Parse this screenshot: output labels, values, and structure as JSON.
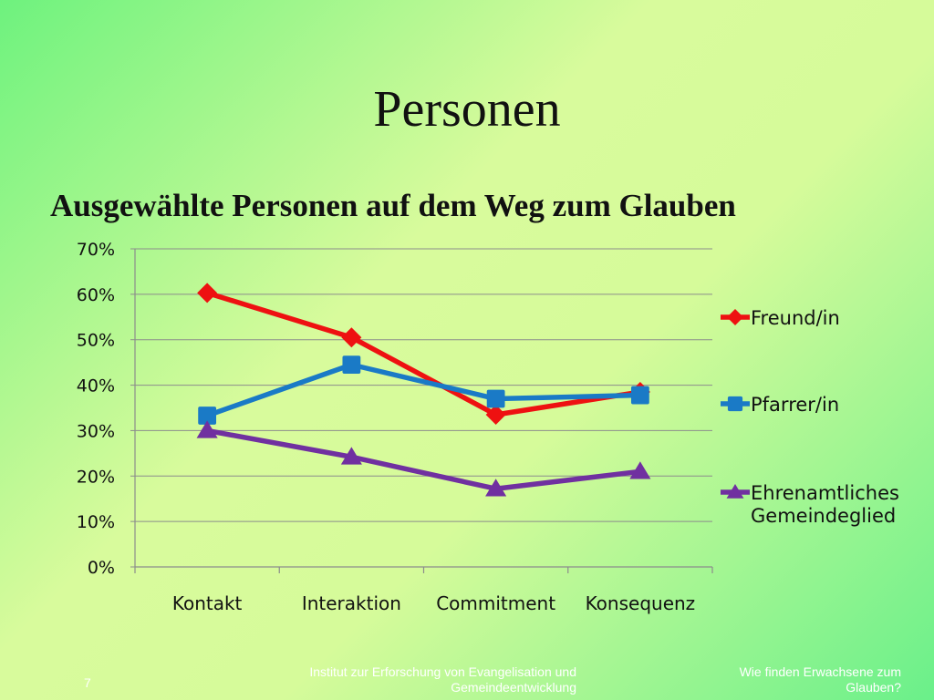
{
  "slide": {
    "title": "Personen",
    "subtitle": "Ausgewählte Personen auf dem Weg zum Glauben"
  },
  "footer": {
    "page_number": "7",
    "organization": "Institut zur Erforschung von Evangelisation und Gemeindeentwicklung",
    "topic": "Wie finden Erwachsene zum Glauben?"
  },
  "chart_data": {
    "type": "line",
    "categories": [
      "Kontakt",
      "Interaktion",
      "Commitment",
      "Konsequenz"
    ],
    "y_ticks": [
      "0%",
      "10%",
      "20%",
      "30%",
      "40%",
      "50%",
      "60%",
      "70%"
    ],
    "ylim": [
      0,
      70
    ],
    "grid": true,
    "legend_position": "right",
    "series": [
      {
        "name": "Freund/in",
        "values": [
          60.3,
          50.5,
          33.5,
          38.5
        ],
        "color": "#ee1111",
        "marker": "diamond"
      },
      {
        "name": "Pfarrer/in",
        "values": [
          33.3,
          44.5,
          37.0,
          37.8
        ],
        "color": "#1a7ac6",
        "marker": "square"
      },
      {
        "name": "Ehrenamtliches Gemeindeglied",
        "legend_lines": [
          "Ehrenamtliches",
          "Gemeindeglied"
        ],
        "values": [
          30.0,
          24.2,
          17.2,
          21.0
        ],
        "color": "#7030a0",
        "marker": "triangle"
      }
    ]
  }
}
